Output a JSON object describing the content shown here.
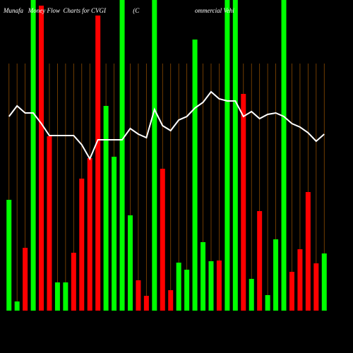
{
  "chart_data": {
    "type": "bar",
    "title": "Munafa   Money Flow  Charts for CVGI                 (C                                   ommercial Vehi",
    "categories": [
      null,
      null,
      null,
      null,
      null,
      null,
      null,
      null,
      null,
      null,
      null,
      null,
      null,
      null,
      null,
      null,
      null,
      null,
      null,
      null,
      null,
      null,
      null,
      null,
      null,
      null,
      null,
      null,
      null,
      null,
      null,
      null,
      null,
      null,
      null,
      null,
      null,
      null,
      null,
      null
    ],
    "values": [
      157,
      13,
      89,
      440,
      432,
      247,
      40,
      40,
      82,
      187,
      216,
      418,
      290,
      218,
      440,
      135,
      43,
      21,
      440,
      201,
      29,
      68,
      58,
      384,
      97,
      70,
      71,
      440,
      440,
      307,
      45,
      141,
      22,
      101,
      440,
      55,
      87,
      168,
      67,
      81
    ],
    "colors": [
      "#00ff00",
      "#00ff00",
      "#ff0000",
      "#00ff00",
      "#ff0000",
      "#ff0000",
      "#00ff00",
      "#00ff00",
      "#ff0000",
      "#ff0000",
      "#ff0000",
      "#ff0000",
      "#00ff00",
      "#00ff00",
      "#00ff00",
      "#00ff00",
      "#ff0000",
      "#ff0000",
      "#00ff00",
      "#ff0000",
      "#ff0000",
      "#00ff00",
      "#00ff00",
      "#00ff00",
      "#00ff00",
      "#00ff00",
      "#ff0000",
      "#00ff00",
      "#00ff00",
      "#ff0000",
      "#00ff00",
      "#ff0000",
      "#00ff00",
      "#00ff00",
      "#00ff00",
      "#ff0000",
      "#ff0000",
      "#ff0000",
      "#ff0000",
      "#00ff00"
    ],
    "line": {
      "color": "#ffffff",
      "values": [
        275,
        290,
        280,
        280,
        265,
        248,
        248,
        248,
        248,
        235,
        215,
        242,
        242,
        242,
        242,
        258,
        250,
        245,
        285,
        262,
        255,
        270,
        275,
        287,
        295,
        310,
        300,
        297,
        297,
        275,
        282,
        272,
        278,
        280,
        275,
        265,
        260,
        252,
        240,
        250
      ]
    },
    "ylim": [
      0,
      440
    ]
  }
}
